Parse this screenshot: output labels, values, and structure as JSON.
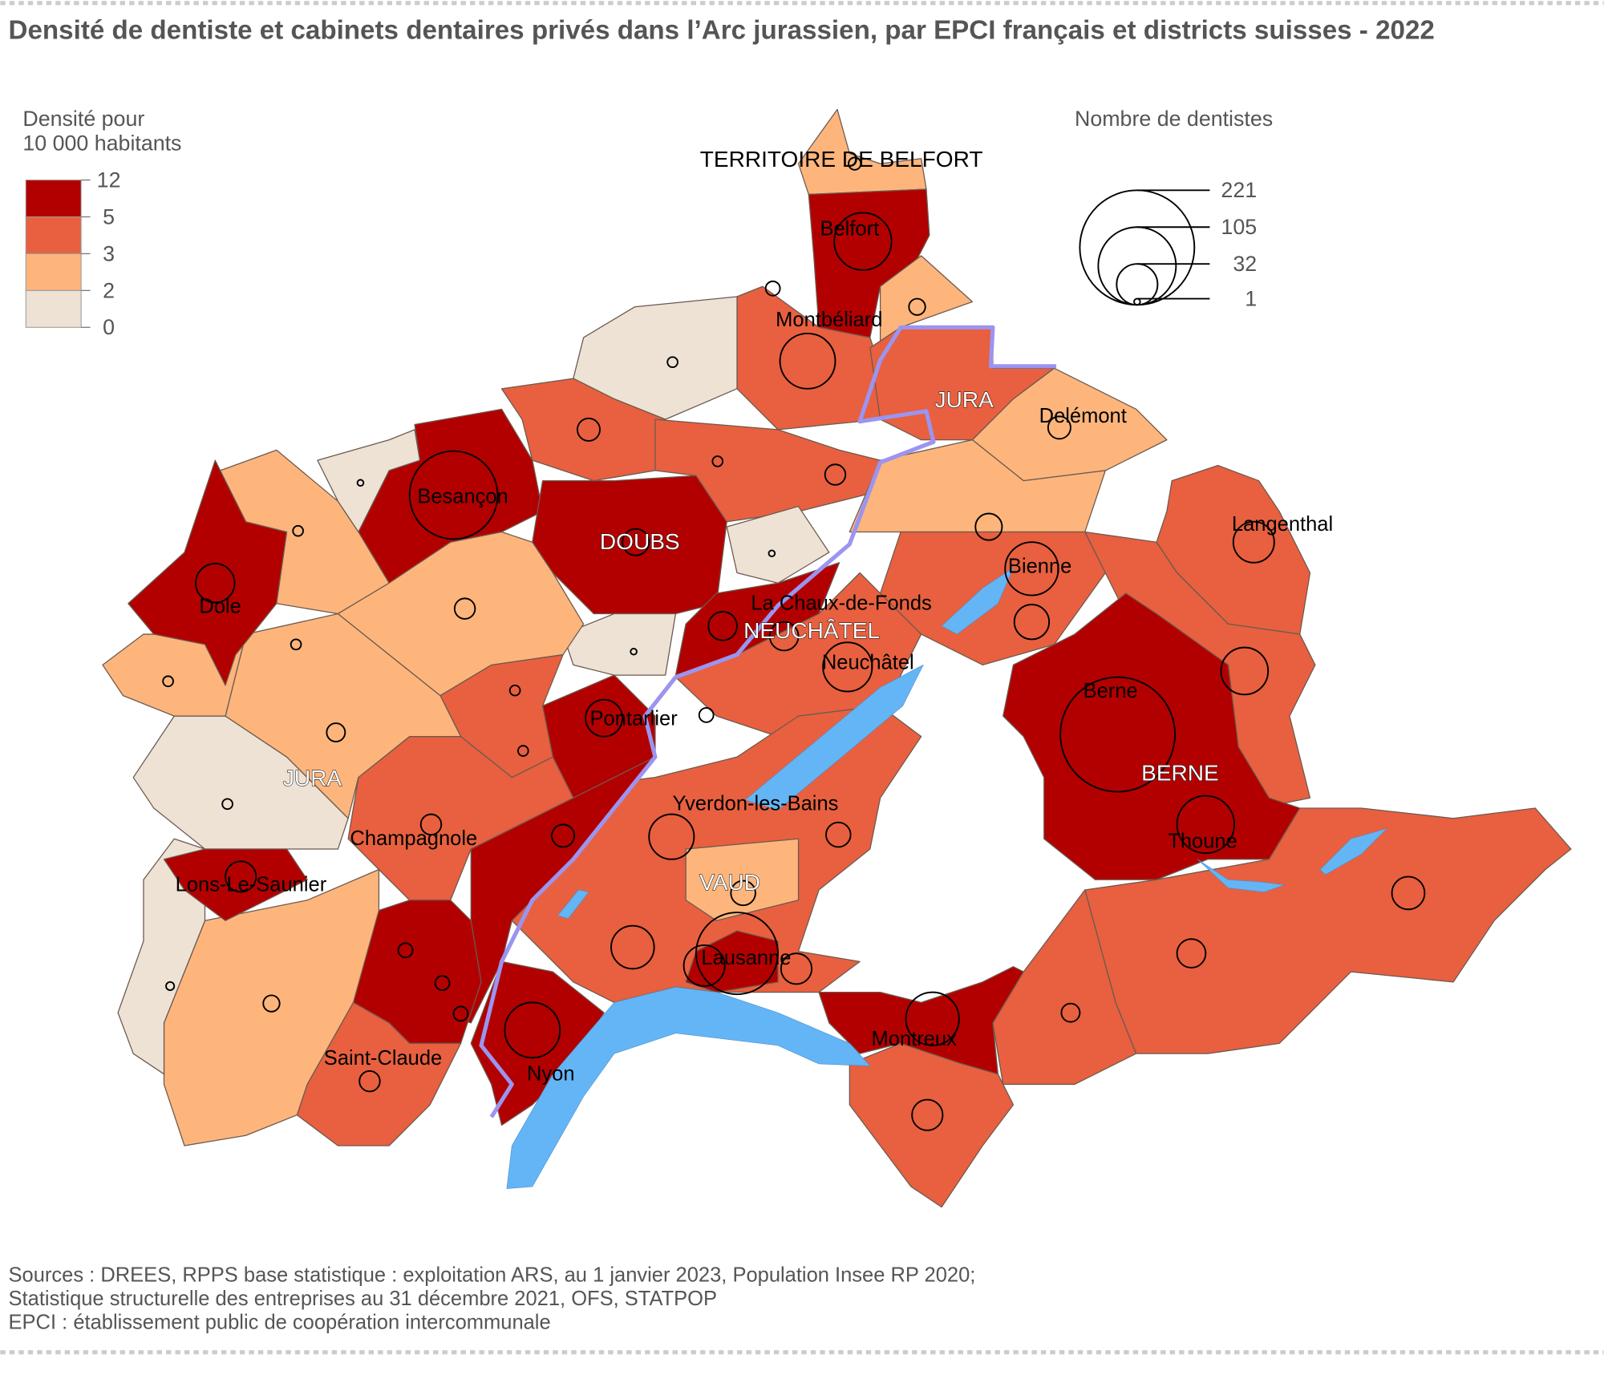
{
  "title": "Densité de dentiste et cabinets dentaires privés dans l’Arc jurassien, par EPCI français et districts suisses - 2022",
  "legend_density": {
    "title_line1": "Densité pour",
    "title_line2": "10 000 habitants",
    "breaks": [
      "12",
      "5",
      "3",
      "2",
      "0"
    ],
    "colors": [
      "#b20000",
      "#e8603f",
      "#fdb57c",
      "#ede2d4"
    ]
  },
  "legend_size": {
    "title": "Nombre de dentistes",
    "values": [
      "221",
      "105",
      "32",
      "1"
    ]
  },
  "colors": {
    "lake": "#64b5f6",
    "border": "#9b94f0"
  },
  "regions_labels": {
    "belfort_dept": "TERRITOIRE DE BELFORT",
    "doubs": "DOUBS",
    "jura_fr": "JURA",
    "jura_ch": "JURA",
    "neuchatel": "NEUCHÂTEL",
    "vaud": "VAUD",
    "berne": "BERNE"
  },
  "places": {
    "belfort": "Belfort",
    "montbeliard": "Montbéliard",
    "delemont": "Delémont",
    "besancon": "Besançon",
    "langenthal": "Langenthal",
    "bienne": "Bienne",
    "dole": "Dole",
    "chaux_de_fonds": "La Chaux-de-Fonds",
    "neuchatel": "Neuchâtel",
    "berne": "Berne",
    "pontarlier": "Pontarlier",
    "yverdon": "Yverdon-les-Bains",
    "champagnole": "Champagnole",
    "thoune": "Thoune",
    "lons": "Lons-Le-Saunier",
    "lausanne": "Lausanne",
    "montreux": "Montreux",
    "saint_claude": "Saint-Claude",
    "nyon": "Nyon"
  },
  "sources": {
    "line1": "Sources : DREES, RPPS base statistique : exploitation ARS, au 1 janvier 2023, Population Insee RP 2020;",
    "line2": "Statistique structurelle des entreprises au 31 décembre 2021, OFS, STATPOP",
    "line3": "EPCI : établissement public de coopération intercommunale"
  }
}
